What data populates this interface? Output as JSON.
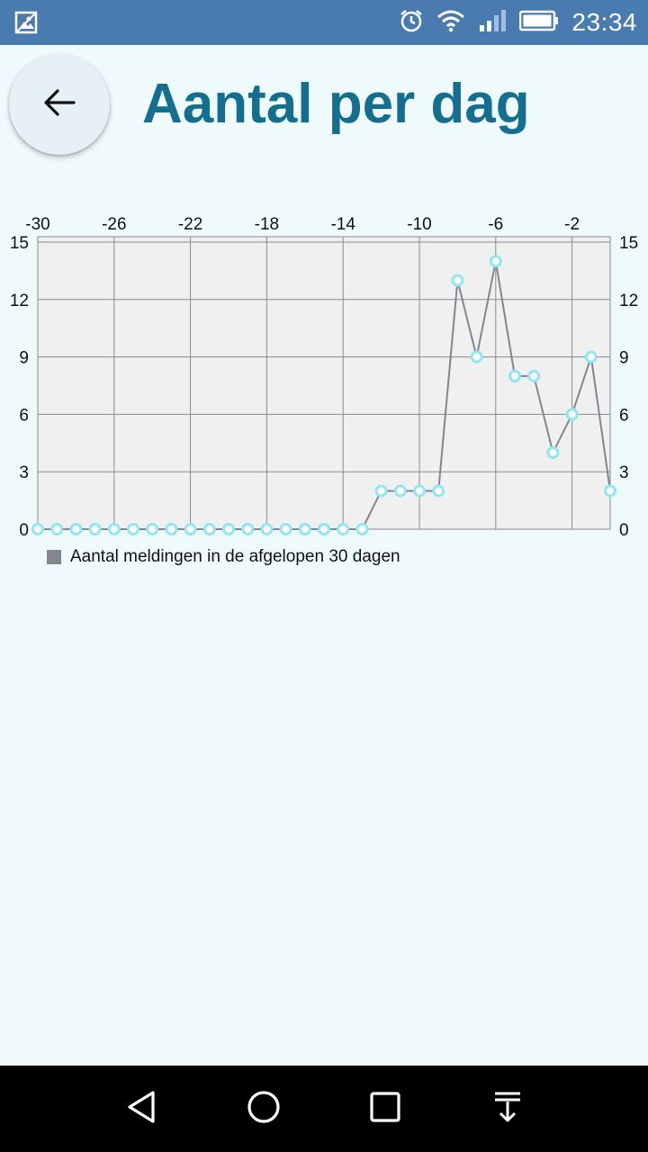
{
  "status_bar": {
    "time": "23:34",
    "icons": [
      "gallery-icon",
      "alarm-icon",
      "wifi-icon",
      "signal-icon",
      "battery-icon"
    ]
  },
  "header": {
    "back_icon": "arrow-left-icon",
    "title": "Aantal per dag"
  },
  "chart_data": {
    "type": "line",
    "x": [
      -30,
      -29,
      -28,
      -27,
      -26,
      -25,
      -24,
      -23,
      -22,
      -21,
      -20,
      -19,
      -18,
      -17,
      -16,
      -15,
      -14,
      -13,
      -12,
      -11,
      -10,
      -9,
      -8,
      -7,
      -6,
      -5,
      -4,
      -3,
      -2,
      -1,
      0
    ],
    "series": [
      {
        "name": "Aantal meldingen in de afgelopen 30 dagen",
        "values": [
          0,
          0,
          0,
          0,
          0,
          0,
          0,
          0,
          0,
          0,
          0,
          0,
          0,
          0,
          0,
          0,
          0,
          0,
          2,
          2,
          2,
          2,
          13,
          9,
          14,
          8,
          8,
          4,
          6,
          9,
          2
        ]
      }
    ],
    "x_ticks": [
      "-30",
      "-26",
      "-22",
      "-18",
      "-14",
      "-10",
      "-6",
      "-2"
    ],
    "x_tick_values": [
      -30,
      -26,
      -22,
      -18,
      -14,
      -10,
      -6,
      -2
    ],
    "y_ticks": [
      "0",
      "3",
      "6",
      "9",
      "12",
      "15"
    ],
    "y_tick_values": [
      0,
      3,
      6,
      9,
      12,
      15
    ],
    "xlim": [
      -30,
      0
    ],
    "ylim": [
      0,
      15
    ],
    "x_axis_position": "top",
    "y_axis_position": "both",
    "grid": true,
    "legend_placement": "bottom-left",
    "line_color": "#858590",
    "marker_color": "#8fe6f5",
    "marker_fill": "#ffffff",
    "legend_color": "#858590"
  },
  "nav_bar": {
    "icons": [
      "back-triangle-icon",
      "home-circle-icon",
      "recents-square-icon",
      "notifications-pull-icon"
    ]
  }
}
